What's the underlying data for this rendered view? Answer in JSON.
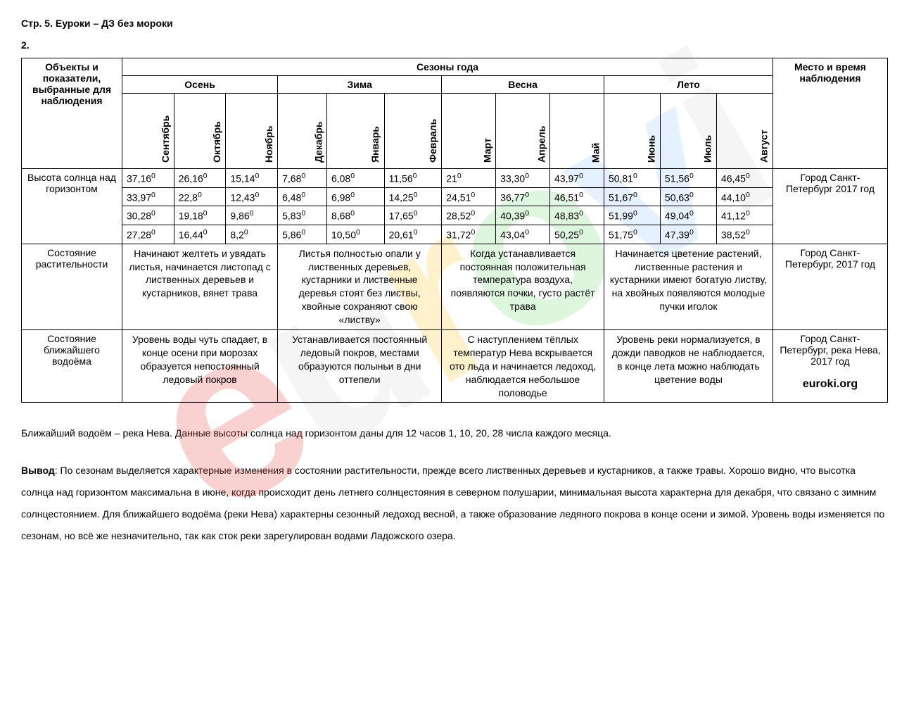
{
  "header": "Стр. 5. Еуроки – ДЗ без мороки",
  "qnum": "2.",
  "colhead": {
    "objects": "Объекты и показатели, выбранные для наблюдения",
    "seasons": "Сезоны года",
    "place": "Место и время наблюдения",
    "autumn": "Осень",
    "winter": "Зима",
    "spring": "Весна",
    "summer": "Лето"
  },
  "months": [
    "Сентябрь",
    "Октябрь",
    "Ноябрь",
    "Декабрь",
    "Январь",
    "Февраль",
    "Март",
    "Апрель",
    "Май",
    "Июнь",
    "Июль",
    "Август"
  ],
  "rows": {
    "sun": {
      "label": "Высота солнца над горизонтом",
      "r1": [
        "37,16",
        "26,16",
        "15,14",
        "7,68",
        "6,08",
        "11,56",
        "21",
        "33,30",
        "43,97",
        "50,81",
        "51,56",
        "46,45"
      ],
      "r2": [
        "33,97",
        "22,8",
        "12,43",
        "6,48",
        "6,98",
        "14,25",
        "24,51",
        "36,77",
        "46,51",
        "51,67",
        "50,63",
        "44,10"
      ],
      "r3": [
        "30,28",
        "19,18",
        "9,86",
        "5,83",
        "8,68",
        "17,65",
        "28,52",
        "40,39",
        "48,83",
        "51,99",
        "49,04",
        "41,12"
      ],
      "r4": [
        "27,28",
        "16,44",
        "8,2",
        "5,86",
        "10,50",
        "20,61",
        "31,72",
        "43,04",
        "50,25",
        "51,75",
        "47,39",
        "38,52"
      ],
      "place": "Город Санкт-Петербург 2017 год"
    },
    "veg": {
      "label": "Состояние растительности",
      "autumn": "Начинают желтеть и увядать листья, начинается листопад с лиственных деревьев и кустарников, вянет трава",
      "winter": "Листья полностью опали у лиственных деревьев, кустарники и лиственные деревья стоят без листвы, хвойные сохраняют свою «листву»",
      "spring": "Когда устанавливается постоянная положительная температура воздуха, появляются почки, густо растёт трава",
      "summer": "Начинается цветение растений, лиственные растения и кустарники имеют богатую листву, на хвойных появляются молодые пучки иголок",
      "place": "Город Санкт-Петербург, 2017 год"
    },
    "water": {
      "label": "Состояние ближайшего водоёма",
      "autumn": "Уровень воды чуть спадает, в конце осени при морозах образуется непостоянный ледовый покров",
      "winter": "Устанавливается постоянный ледовый покров, местами образуются полыньи в дни оттепели",
      "spring": "С наступлением тёплых температур Нева вскрывается ото льда и начинается ледоход, наблюдается небольшое половодье",
      "summer": "Уровень реки нормализуется, в дожди паводков не наблюдается, в конце лета можно наблюдать цветение воды",
      "place": "Город Санкт-Петербург, река Нева, 2017 год",
      "brand": "euroki.org"
    }
  },
  "note": "Ближайший водоём – река Нева. Данные высоты солнца над горизонтом даны для 12 часов 1, 10, 20, 28 числа каждого месяца.",
  "concl_label": "Вывод",
  "concl": ": По сезонам выделяется характерные изменения в состоянии растительности, прежде всего лиственных деревьев и кустарников, а также травы. Хорошо видно, что высотка солнца над горизонтом максимальна в июне, когда происходит день летнего солнцестояния в северном полушарии, минимальная высота характерна для декабря, что связано с зимним солнцестоянием. Для ближайшего водоёма (реки Нева) характерны сезонный ледоход весной, а также образование ледяного покрова в конце осени и зимой. Уровень воды изменяется по сезонам, но всё же незначительно, так как сток реки зарегулирован водами Ладожского озера."
}
